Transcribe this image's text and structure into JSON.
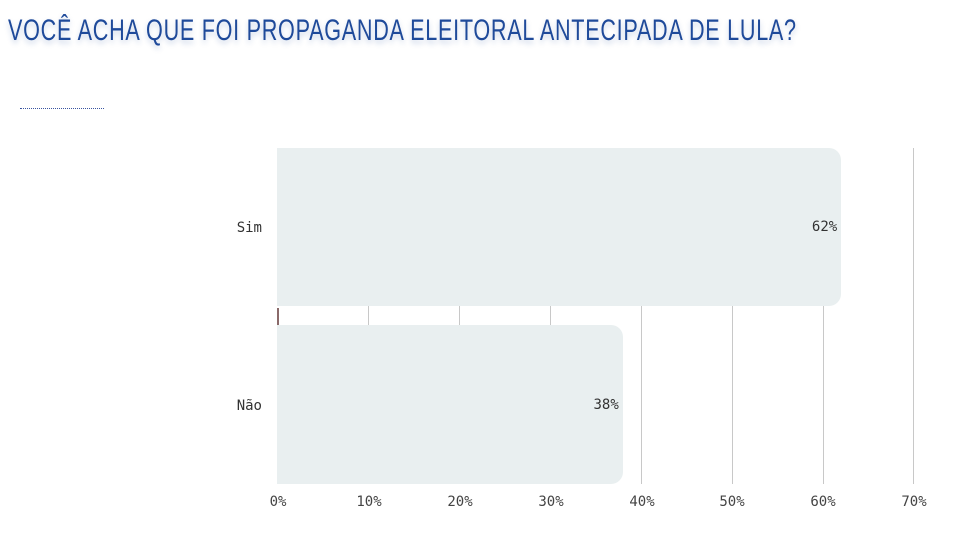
{
  "title": "VOCÊ ACHA QUE FOI PROPAGANDA ELEITORAL ANTECIPADA DE LULA?",
  "colors": {
    "title": "#1f4a9a",
    "bar": "#e9eff0",
    "grid": "#c8c8c8",
    "text": "#333333"
  },
  "chart_data": {
    "type": "bar",
    "orientation": "horizontal",
    "title": "VOCÊ ACHA QUE FOI PROPAGANDA ELEITORAL ANTECIPADA DE LULA?",
    "categories": [
      "Sim",
      "Não"
    ],
    "values": [
      62,
      38
    ],
    "value_labels": [
      "62%",
      "38%"
    ],
    "xlabel": "",
    "ylabel": "",
    "xlim": [
      0,
      70
    ],
    "x_ticks": [
      "0%",
      "10%",
      "20%",
      "30%",
      "40%",
      "50%",
      "60%",
      "70%"
    ],
    "grid": "vertical",
    "legend": "none"
  }
}
